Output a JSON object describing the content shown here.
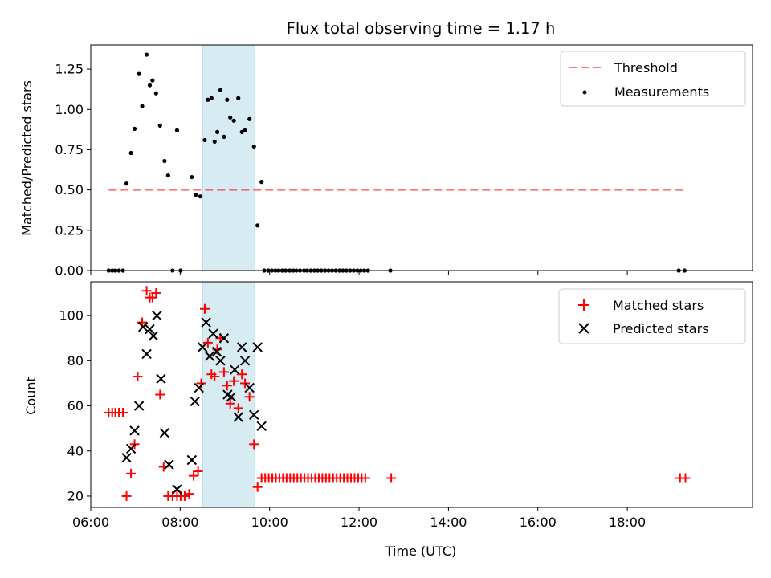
{
  "chart_data": [
    {
      "type": "scatter",
      "title": "Flux total observing time = 1.17 h",
      "ylabel": "Matched/Predicted stars",
      "ylim": [
        0,
        1.4
      ],
      "yticks": [
        0.0,
        0.25,
        0.5,
        0.75,
        1.0,
        1.25
      ],
      "yticklabels": [
        "0.00",
        "0.25",
        "0.50",
        "0.75",
        "1.00",
        "1.25"
      ],
      "xlim_hours": [
        6.0,
        20.8
      ],
      "highlight_span_hours": [
        8.5,
        9.67
      ],
      "highlight_color": "#add8e6",
      "legend_position": "upper right",
      "threshold": {
        "name": "Threshold",
        "y": 0.5,
        "x_hours": [
          6.4,
          19.3
        ],
        "color": "#ff0000"
      },
      "series": [
        {
          "name": "Measurements",
          "color": "#000000",
          "marker": "dot",
          "x_hours": [
            6.4,
            6.48,
            6.55,
            6.63,
            6.72,
            6.8,
            6.9,
            6.98,
            7.08,
            7.15,
            7.25,
            7.32,
            7.38,
            7.46,
            7.55,
            7.65,
            7.73,
            7.83,
            7.93,
            8.01,
            8.26,
            8.35,
            8.45,
            8.55,
            8.62,
            8.7,
            8.77,
            8.83,
            8.9,
            8.98,
            9.05,
            9.12,
            9.2,
            9.3,
            9.38,
            9.45,
            9.55,
            9.65,
            9.73,
            9.82,
            9.88,
            9.97,
            10.05,
            10.13,
            10.2,
            10.28,
            10.36,
            10.45,
            10.53,
            10.6,
            10.68,
            10.77,
            10.84,
            10.92,
            11.0,
            11.08,
            11.16,
            11.24,
            11.32,
            11.4,
            11.48,
            11.56,
            11.64,
            11.72,
            11.8,
            11.88,
            11.96,
            12.04,
            12.12,
            12.2,
            12.7,
            19.15,
            19.28
          ],
          "y": [
            0,
            0,
            0,
            0,
            0,
            0.54,
            0.73,
            0.88,
            1.22,
            1.02,
            1.34,
            1.15,
            1.18,
            1.1,
            0.9,
            0.68,
            0.59,
            0,
            0.87,
            0,
            0.58,
            0.47,
            0.46,
            0.81,
            1.06,
            1.07,
            0.8,
            0.86,
            1.12,
            0.83,
            1.06,
            0.95,
            0.93,
            1.07,
            0.86,
            0.87,
            0.94,
            0.77,
            0.28,
            0.55,
            0,
            0,
            0,
            0,
            0,
            0,
            0,
            0,
            0,
            0,
            0,
            0,
            0,
            0,
            0,
            0,
            0,
            0,
            0,
            0,
            0,
            0,
            0,
            0,
            0,
            0,
            0,
            0,
            0,
            0,
            0,
            0,
            0
          ]
        }
      ]
    },
    {
      "type": "scatter",
      "xlabel": "Time (UTC)",
      "ylabel": "Count",
      "ylim": [
        15,
        115
      ],
      "yticks": [
        20,
        40,
        60,
        80,
        100
      ],
      "xticks_hours": [
        6,
        8,
        10,
        12,
        14,
        16,
        18
      ],
      "xticklabels": [
        "06:00",
        "08:00",
        "10:00",
        "12:00",
        "14:00",
        "16:00",
        "18:00"
      ],
      "highlight_span_hours": [
        8.5,
        9.67
      ],
      "legend_position": "upper right",
      "series": [
        {
          "name": "Matched stars",
          "color": "#ff0000",
          "marker": "plus",
          "x_hours": [
            6.4,
            6.48,
            6.55,
            6.63,
            6.72,
            6.8,
            6.9,
            6.98,
            7.05,
            7.15,
            7.25,
            7.32,
            7.38,
            7.46,
            7.55,
            7.63,
            7.73,
            7.83,
            7.93,
            8.01,
            8.1,
            8.2,
            8.3,
            8.4,
            8.47,
            8.55,
            8.62,
            8.7,
            8.77,
            8.83,
            8.9,
            8.98,
            9.05,
            9.12,
            9.2,
            9.3,
            9.38,
            9.45,
            9.55,
            9.65,
            9.73,
            9.82,
            9.9,
            9.98,
            10.06,
            10.14,
            10.22,
            10.3,
            10.38,
            10.46,
            10.54,
            10.62,
            10.7,
            10.78,
            10.86,
            10.94,
            11.02,
            11.1,
            11.18,
            11.26,
            11.34,
            11.42,
            11.5,
            11.58,
            11.66,
            11.74,
            11.82,
            11.9,
            11.98,
            12.06,
            12.14,
            12.72,
            19.18,
            19.3
          ],
          "y": [
            57,
            57,
            57,
            57,
            57,
            20,
            30,
            43,
            73,
            97,
            111,
            108,
            108,
            110,
            65,
            33,
            20,
            20,
            20,
            20,
            20,
            21,
            29,
            31,
            70,
            103,
            88,
            74,
            73,
            85,
            90,
            75,
            69,
            61,
            71,
            59,
            74,
            70,
            64,
            43,
            24,
            28,
            28,
            28,
            28,
            28,
            28,
            28,
            28,
            28,
            28,
            28,
            28,
            28,
            28,
            28,
            28,
            28,
            28,
            28,
            28,
            28,
            28,
            28,
            28,
            28,
            28,
            28,
            28,
            28,
            28,
            28,
            28,
            28
          ]
        },
        {
          "name": "Predicted stars",
          "color": "#000000",
          "marker": "x",
          "x_hours": [
            6.8,
            6.9,
            6.98,
            7.08,
            7.17,
            7.25,
            7.32,
            7.4,
            7.48,
            7.57,
            7.65,
            7.75,
            7.93,
            8.26,
            8.33,
            8.42,
            8.5,
            8.58,
            8.66,
            8.74,
            8.82,
            8.9,
            8.98,
            9.06,
            9.14,
            9.22,
            9.3,
            9.38,
            9.45,
            9.55,
            9.65,
            9.73,
            9.82
          ],
          "y": [
            37,
            41,
            49,
            60,
            95,
            83,
            94,
            91,
            100,
            72,
            48,
            34,
            23,
            36,
            62,
            68,
            86,
            97,
            82,
            92,
            84,
            80,
            90,
            65,
            64,
            76,
            55,
            86,
            80,
            68,
            56,
            86,
            51
          ]
        }
      ]
    }
  ]
}
